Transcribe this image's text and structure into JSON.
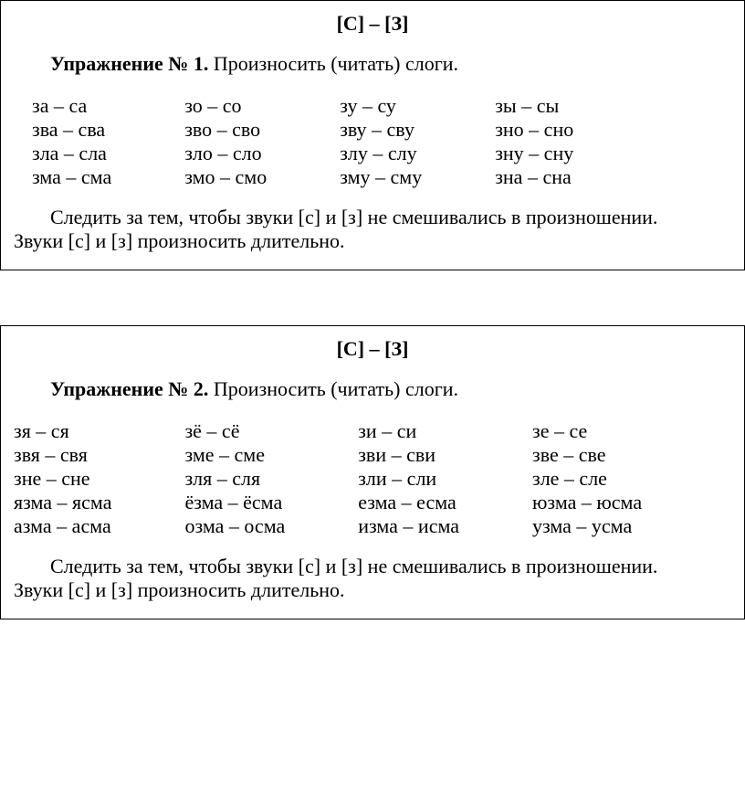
{
  "ex1": {
    "header": "[С] – [З]",
    "title_bold": "Упражнение № 1.",
    "title_rest": " Произносить (читать) слоги.",
    "rows": [
      [
        "за – са",
        "зо – со",
        "зу – су",
        "зы – сы"
      ],
      [
        "зва – сва",
        "зво – сво",
        "зву – сву",
        "зно – сно"
      ],
      [
        "зла – сла",
        "зло – сло",
        "злу – слу",
        "зну – сну"
      ],
      [
        "зма – сма",
        "змо – смо",
        "зму – сму",
        "зна – сна"
      ]
    ],
    "note1": "Следить за тем, чтобы звуки [с] и [з] не смешивались в произношении.",
    "note2": "Звуки [с] и [з] произносить длительно."
  },
  "ex2": {
    "header": "[С] – [З]",
    "title_bold": "Упражнение № 2.",
    "title_rest": " Произносить (читать) слоги.",
    "rows": [
      [
        "зя – ся",
        "зё – сё",
        "зи – си",
        "зе – се"
      ],
      [
        "звя – свя",
        "зме – сме",
        "зви – сви",
        "зве – све"
      ],
      [
        "зне – сне",
        "зля – сля",
        "зли – сли",
        "зле – сле"
      ],
      [
        "язма – ясма",
        "ёзма – ёсма",
        "езма – есма",
        "юзма – юсма"
      ],
      [
        "азма – асма",
        "озма – осма",
        "изма – исма",
        "узма – усма"
      ]
    ],
    "note1": "Следить за тем, чтобы звуки [с] и [з] не смешивались в произношении.",
    "note2": "Звуки [с] и [з] произносить длительно."
  }
}
